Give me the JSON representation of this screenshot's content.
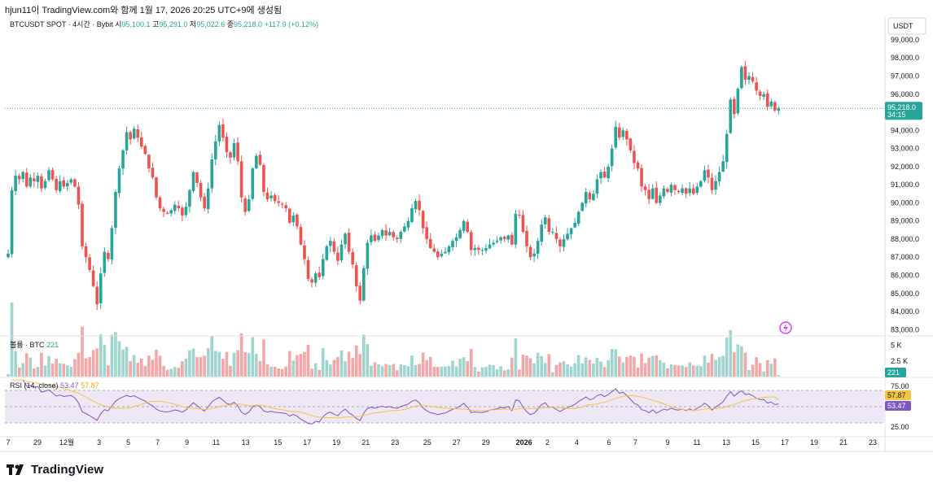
{
  "header": {
    "caption": "hjun11이 TradingView.com와 함께 1월 17, 2026 20:25 UTC+9에 생성됨"
  },
  "legend": {
    "symbol": "BTCUSDT SPOT · 4시간 · Bybit",
    "open_label": "시",
    "open": "95,100.1",
    "high_label": "고",
    "high": "95,291.0",
    "low_label": "저",
    "low": "95,022.6",
    "close_label": "종",
    "close": "95,218.0",
    "change": "+117.9 (+0.12%)"
  },
  "price_scale": {
    "currency": "USDT",
    "current_price": "95,218.0",
    "countdown": "34:15"
  },
  "volume_pane": {
    "label": "볼륨 · BTC",
    "value": "221",
    "ticks": [
      "5 K",
      "2.5 K"
    ],
    "tick_values": [
      5000,
      2500
    ],
    "current_tag": "221"
  },
  "rsi_pane": {
    "label": "RSI (14, close)",
    "value": "53.47",
    "ma_value": "57.87",
    "ticks": [
      "75.00",
      "25.00"
    ],
    "upper_band": 70,
    "lower_band": 30,
    "middle_band": 50
  },
  "x_axis": {
    "labels": [
      "7",
      "29",
      "12월",
      "3",
      "5",
      "7",
      "9",
      "11",
      "13",
      "15",
      "17",
      "19",
      "21",
      "23",
      "25",
      "27",
      "29",
      "2026",
      "2",
      "4",
      "6",
      "7",
      "9",
      "11",
      "13",
      "15",
      "17",
      "19",
      "21",
      "23"
    ]
  },
  "colors": {
    "up": "#26a69a",
    "down": "#ef5350",
    "up_volume": "#9fd5cf",
    "down_volume": "#f5a6a6",
    "rsi_line": "#7e57c2",
    "rsi_ma": "#f4c542",
    "rsi_band_fill": "#ede7f6",
    "price_line": "#26a69a"
  },
  "branding": {
    "name": "TradingView"
  },
  "chart_data": {
    "type": "candlestick",
    "interval": "4h",
    "y_ticks": [
      83000,
      84000,
      85000,
      86000,
      87000,
      88000,
      89000,
      90000,
      91000,
      92000,
      93000,
      94000,
      95000,
      96000,
      97000,
      98000,
      99000
    ],
    "y_tick_labels": [
      "83,000.0",
      "84,000.0",
      "85,000.0",
      "86,000.0",
      "87,000.0",
      "88,000.0",
      "89,000.0",
      "90,000.0",
      "91,000.0",
      "92,000.0",
      "93,000.0",
      "94,000.0",
      "95,000.0",
      "96,000.0",
      "97,000.0",
      "98,000.0",
      "99,000.0"
    ],
    "ylim": [
      82700,
      100300
    ],
    "last_price": 95218.0,
    "close_path": [
      [
        0,
        87200
      ],
      [
        1,
        90700
      ],
      [
        2,
        91500
      ],
      [
        3,
        91300
      ],
      [
        4,
        91700
      ],
      [
        5,
        90900
      ],
      [
        6,
        91400
      ],
      [
        7,
        91200
      ],
      [
        8,
        91500
      ],
      [
        9,
        90800
      ],
      [
        10,
        91200
      ],
      [
        11,
        91800
      ],
      [
        12,
        91300
      ],
      [
        13,
        90700
      ],
      [
        14,
        91200
      ],
      [
        15,
        90900
      ],
      [
        16,
        91100
      ],
      [
        17,
        91300
      ],
      [
        18,
        90900
      ],
      [
        19,
        89900
      ],
      [
        20,
        87600
      ],
      [
        21,
        87000
      ],
      [
        22,
        86300
      ],
      [
        23,
        85400
      ],
      [
        24,
        84400
      ],
      [
        25,
        86100
      ],
      [
        26,
        87300
      ],
      [
        27,
        86900
      ],
      [
        28,
        88600
      ],
      [
        29,
        90600
      ],
      [
        30,
        91900
      ],
      [
        31,
        92900
      ],
      [
        32,
        93900
      ],
      [
        33,
        93500
      ],
      [
        34,
        94100
      ],
      [
        35,
        93600
      ],
      [
        36,
        93100
      ],
      [
        37,
        92700
      ],
      [
        38,
        91900
      ],
      [
        39,
        91400
      ],
      [
        40,
        90300
      ],
      [
        41,
        89700
      ],
      [
        42,
        89500
      ],
      [
        43,
        89400
      ],
      [
        44,
        89600
      ],
      [
        45,
        89900
      ],
      [
        46,
        89700
      ],
      [
        47,
        89300
      ],
      [
        48,
        89800
      ],
      [
        49,
        90700
      ],
      [
        50,
        91700
      ],
      [
        51,
        91100
      ],
      [
        52,
        90300
      ],
      [
        53,
        89700
      ],
      [
        54,
        90800
      ],
      [
        55,
        92400
      ],
      [
        56,
        93400
      ],
      [
        57,
        94300
      ],
      [
        58,
        93600
      ],
      [
        59,
        92800
      ],
      [
        60,
        92500
      ],
      [
        61,
        93300
      ],
      [
        62,
        92300
      ],
      [
        63,
        90300
      ],
      [
        64,
        89500
      ],
      [
        65,
        90200
      ],
      [
        66,
        91900
      ],
      [
        67,
        92600
      ],
      [
        68,
        92100
      ],
      [
        69,
        90600
      ],
      [
        70,
        90200
      ],
      [
        71,
        90400
      ],
      [
        72,
        90100
      ],
      [
        73,
        90000
      ],
      [
        74,
        89900
      ],
      [
        75,
        89700
      ],
      [
        76,
        88900
      ],
      [
        77,
        89300
      ],
      [
        78,
        88700
      ],
      [
        79,
        87700
      ],
      [
        80,
        86900
      ],
      [
        81,
        85800
      ],
      [
        82,
        85600
      ],
      [
        83,
        86100
      ],
      [
        84,
        85900
      ],
      [
        85,
        86900
      ],
      [
        86,
        87600
      ],
      [
        87,
        87900
      ],
      [
        88,
        87300
      ],
      [
        89,
        86800
      ],
      [
        90,
        87700
      ],
      [
        91,
        88300
      ],
      [
        92,
        87300
      ],
      [
        93,
        86600
      ],
      [
        94,
        85400
      ],
      [
        95,
        84600
      ],
      [
        96,
        86400
      ],
      [
        97,
        87800
      ],
      [
        98,
        88200
      ],
      [
        99,
        87900
      ],
      [
        100,
        88200
      ],
      [
        101,
        88500
      ],
      [
        102,
        88200
      ],
      [
        103,
        88400
      ],
      [
        104,
        88100
      ],
      [
        105,
        88000
      ],
      [
        106,
        88400
      ],
      [
        107,
        88700
      ],
      [
        108,
        89000
      ],
      [
        109,
        89700
      ],
      [
        110,
        90100
      ],
      [
        111,
        89600
      ],
      [
        112,
        88600
      ],
      [
        113,
        88000
      ],
      [
        114,
        87500
      ],
      [
        115,
        87300
      ],
      [
        116,
        87000
      ],
      [
        117,
        87200
      ],
      [
        118,
        87300
      ],
      [
        119,
        87600
      ],
      [
        120,
        87900
      ],
      [
        121,
        88100
      ],
      [
        122,
        88500
      ],
      [
        123,
        89000
      ],
      [
        124,
        88400
      ],
      [
        125,
        87400
      ],
      [
        126,
        87500
      ],
      [
        127,
        87400
      ],
      [
        128,
        87400
      ],
      [
        129,
        87500
      ],
      [
        130,
        87700
      ],
      [
        131,
        87800
      ],
      [
        132,
        87900
      ],
      [
        133,
        88100
      ],
      [
        134,
        88000
      ],
      [
        135,
        88200
      ],
      [
        136,
        87700
      ],
      [
        137,
        89400
      ],
      [
        138,
        89300
      ],
      [
        139,
        88400
      ],
      [
        140,
        87600
      ],
      [
        141,
        87000
      ],
      [
        142,
        87200
      ],
      [
        143,
        87900
      ],
      [
        144,
        88800
      ],
      [
        145,
        89200
      ],
      [
        146,
        88400
      ],
      [
        147,
        88400
      ],
      [
        148,
        88000
      ],
      [
        149,
        87600
      ],
      [
        150,
        88000
      ],
      [
        151,
        88300
      ],
      [
        152,
        88600
      ],
      [
        153,
        88900
      ],
      [
        154,
        89500
      ],
      [
        155,
        90000
      ],
      [
        156,
        90600
      ],
      [
        157,
        90200
      ],
      [
        158,
        90500
      ],
      [
        159,
        91300
      ],
      [
        160,
        91700
      ],
      [
        161,
        91400
      ],
      [
        162,
        92000
      ],
      [
        163,
        93000
      ],
      [
        164,
        94200
      ],
      [
        165,
        93600
      ],
      [
        166,
        94000
      ],
      [
        167,
        93500
      ],
      [
        168,
        92900
      ],
      [
        169,
        92200
      ],
      [
        170,
        91900
      ],
      [
        171,
        90900
      ],
      [
        172,
        90700
      ],
      [
        173,
        90200
      ],
      [
        174,
        90800
      ],
      [
        175,
        90000
      ],
      [
        176,
        90400
      ],
      [
        177,
        90800
      ],
      [
        178,
        90600
      ],
      [
        179,
        91000
      ],
      [
        180,
        90700
      ],
      [
        181,
        90600
      ],
      [
        182,
        90800
      ],
      [
        183,
        90500
      ],
      [
        184,
        90800
      ],
      [
        185,
        90500
      ],
      [
        186,
        90900
      ],
      [
        187,
        91200
      ],
      [
        188,
        91800
      ],
      [
        189,
        91400
      ],
      [
        190,
        90700
      ],
      [
        191,
        91200
      ],
      [
        192,
        91700
      ],
      [
        193,
        92300
      ],
      [
        194,
        93800
      ],
      [
        195,
        95700
      ],
      [
        196,
        94900
      ],
      [
        197,
        96300
      ],
      [
        198,
        97500
      ],
      [
        199,
        96800
      ],
      [
        200,
        97000
      ],
      [
        201,
        96700
      ],
      [
        202,
        96200
      ],
      [
        203,
        95900
      ],
      [
        204,
        96000
      ],
      [
        205,
        95300
      ],
      [
        206,
        95600
      ],
      [
        207,
        95100
      ],
      [
        208,
        95218
      ]
    ],
    "x_label_positions": [
      0,
      10,
      20,
      31,
      41,
      51,
      61,
      71,
      81,
      92,
      102,
      112,
      122,
      132,
      143,
      153,
      163,
      176,
      184,
      194,
      205,
      214,
      225,
      235,
      245,
      255,
      265,
      275,
      285,
      295
    ]
  }
}
